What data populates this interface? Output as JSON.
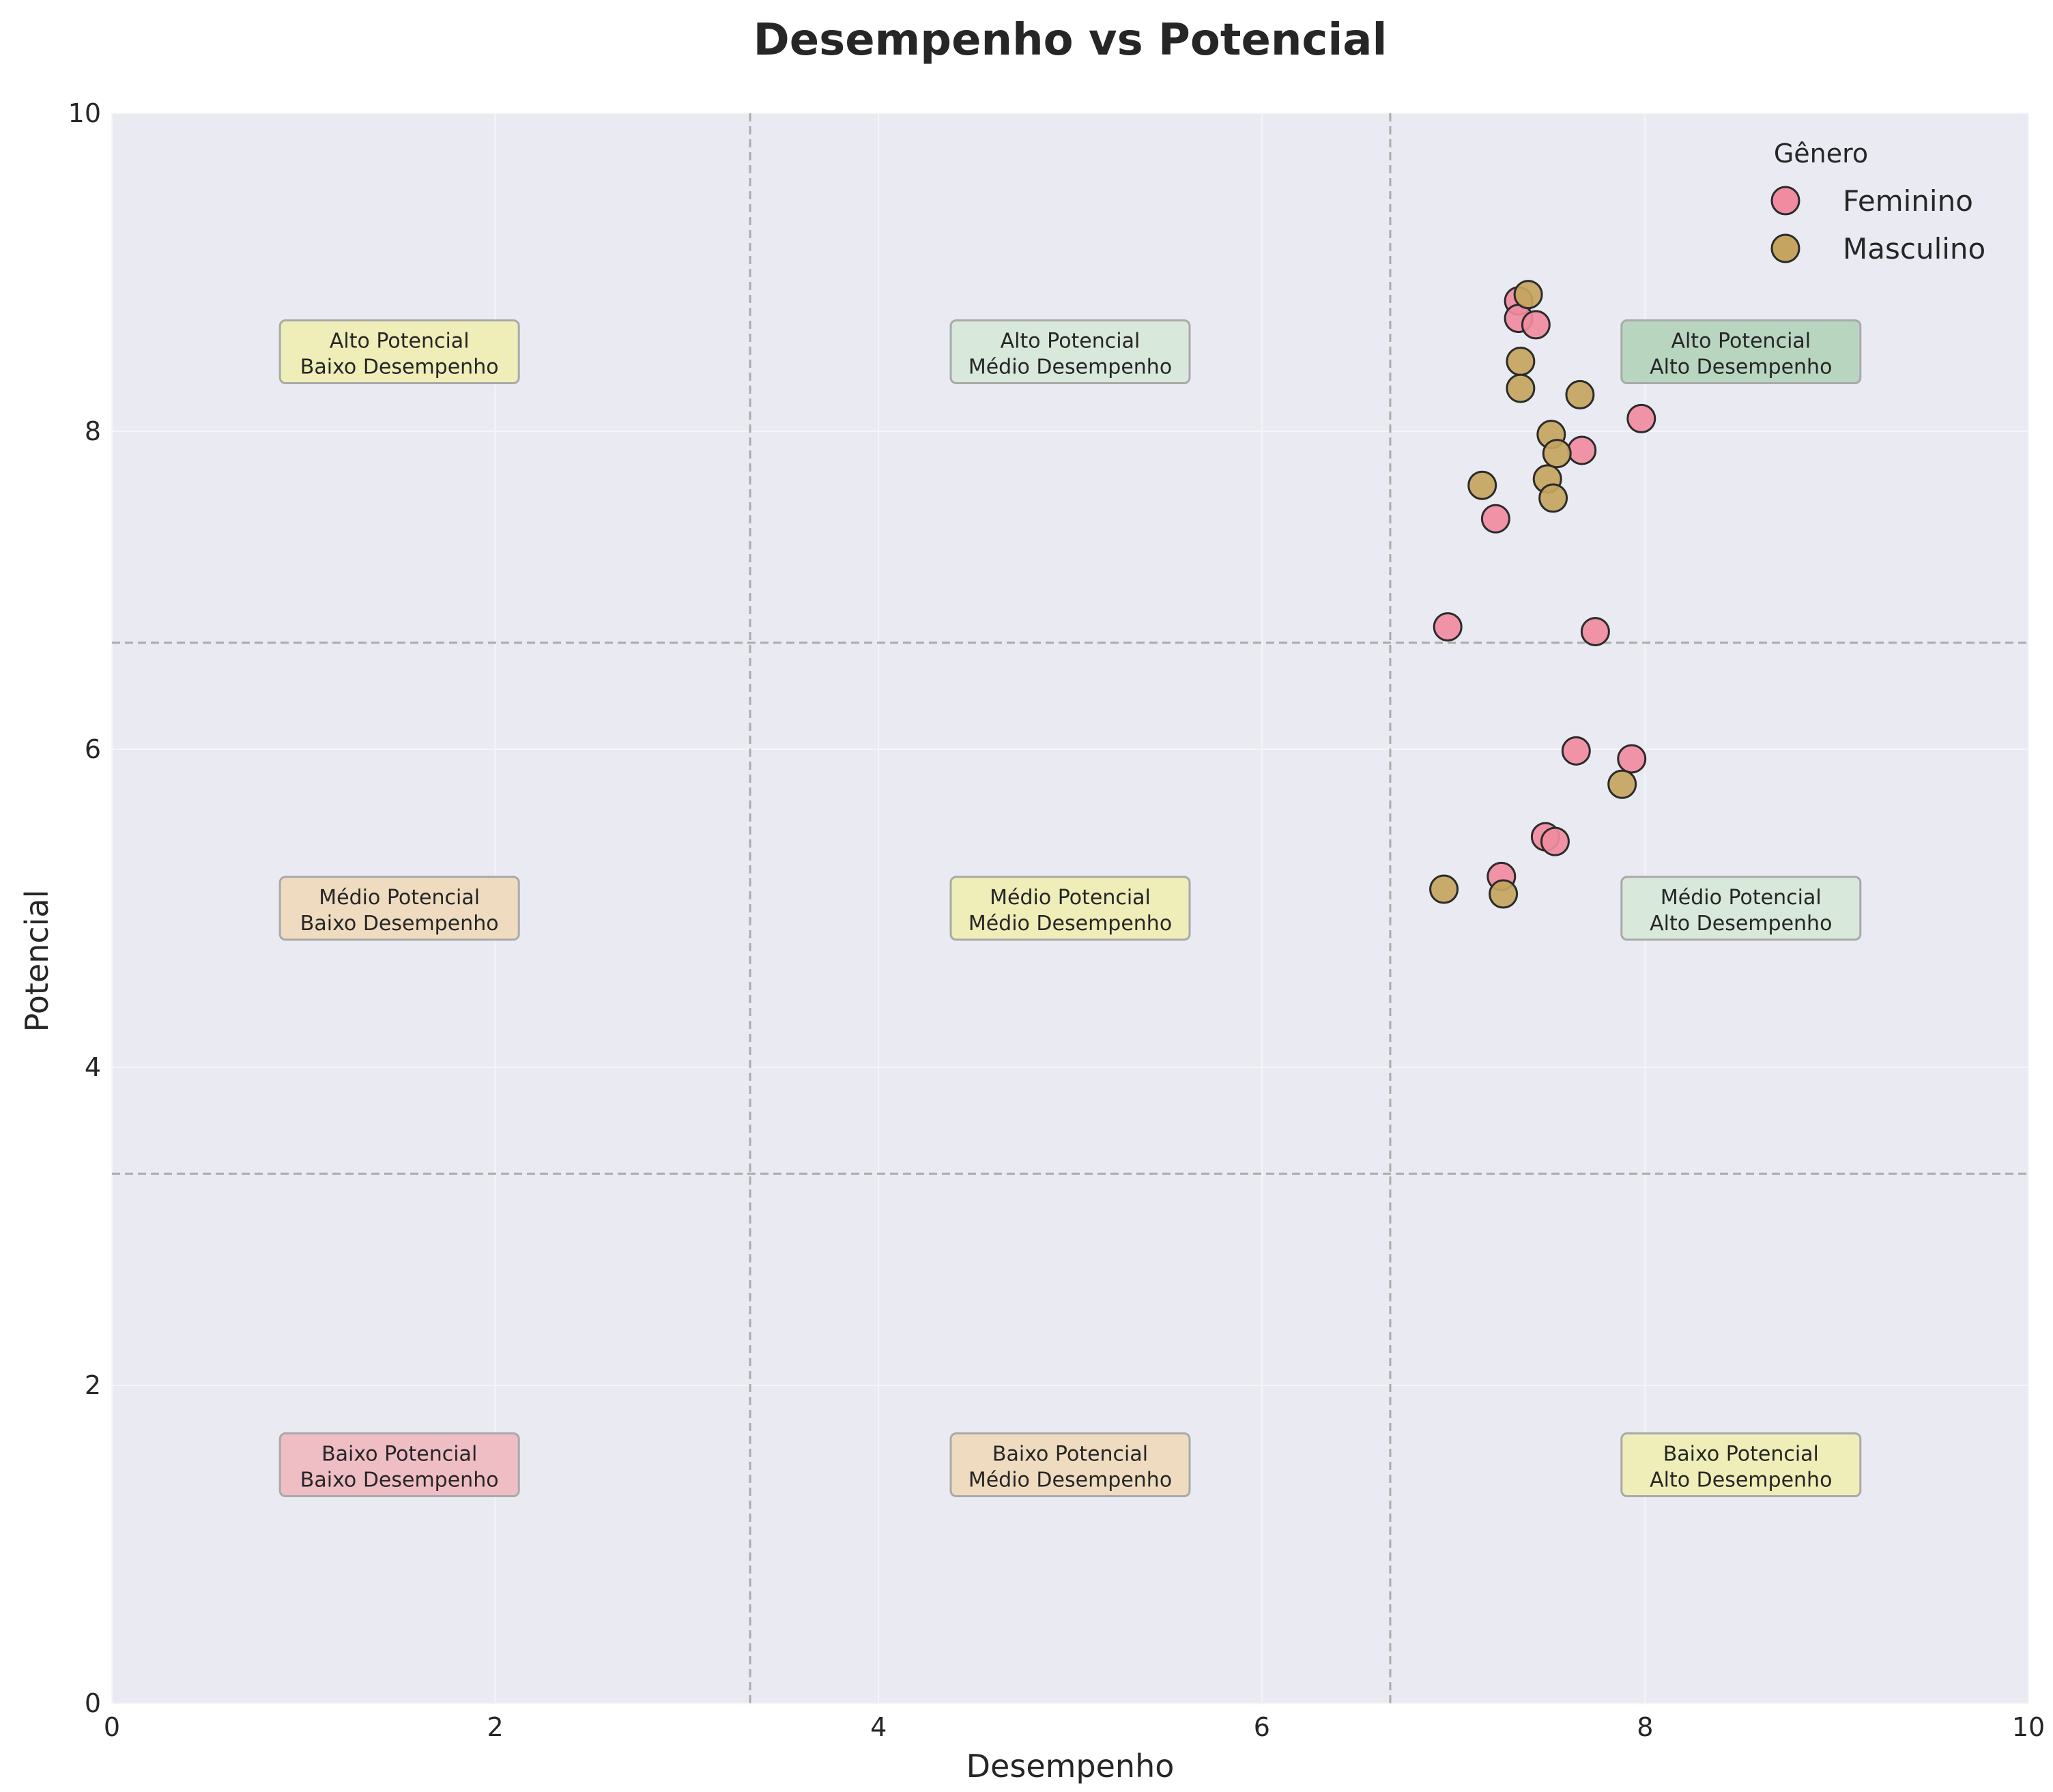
{
  "chart_data": {
    "type": "scatter",
    "title": "Desempenho vs Potencial",
    "xlabel": "Desempenho",
    "ylabel": "Potencial",
    "xlim": [
      0,
      10
    ],
    "ylim": [
      0,
      10
    ],
    "xticks": [
      0,
      2,
      4,
      6,
      8,
      10
    ],
    "yticks": [
      0,
      2,
      4,
      6,
      8,
      10
    ],
    "grid": true,
    "thresholds": {
      "x": [
        3.33,
        6.67
      ],
      "y": [
        3.33,
        6.67
      ]
    },
    "legend": {
      "title": "Gênero",
      "placement": "top-right"
    },
    "series": [
      {
        "name": "Feminino",
        "color": "#F08BA0",
        "points": [
          [
            7.34,
            8.82
          ],
          [
            7.34,
            8.71
          ],
          [
            7.43,
            8.67
          ],
          [
            7.98,
            8.08
          ],
          [
            7.67,
            7.88
          ],
          [
            7.22,
            7.45
          ],
          [
            6.97,
            6.77
          ],
          [
            7.74,
            6.74
          ],
          [
            7.64,
            5.99
          ],
          [
            7.93,
            5.94
          ],
          [
            7.48,
            5.45
          ],
          [
            7.53,
            5.42
          ],
          [
            7.25,
            5.2
          ]
        ]
      },
      {
        "name": "Masculino",
        "color": "#C4A45E",
        "points": [
          [
            7.39,
            8.86
          ],
          [
            7.35,
            8.44
          ],
          [
            7.35,
            8.27
          ],
          [
            7.66,
            8.23
          ],
          [
            7.51,
            7.98
          ],
          [
            7.54,
            7.86
          ],
          [
            7.15,
            7.66
          ],
          [
            7.49,
            7.7
          ],
          [
            7.52,
            7.58
          ],
          [
            7.88,
            5.78
          ],
          [
            6.95,
            5.12
          ],
          [
            7.26,
            5.09
          ]
        ]
      }
    ],
    "zones": [
      {
        "id": "alto-baixo",
        "line1": "Alto Potencial",
        "line2": "Baixo Desempenho",
        "x": 1.5,
        "y": 8.5,
        "color": "#EFEDB8"
      },
      {
        "id": "alto-medio",
        "line1": "Alto Potencial",
        "line2": "Médio Desempenho",
        "x": 5.0,
        "y": 8.5,
        "color": "#D8E8DA"
      },
      {
        "id": "alto-alto",
        "line1": "Alto Potencial",
        "line2": "Alto Desempenho",
        "x": 8.5,
        "y": 8.5,
        "color": "#B8D5C0"
      },
      {
        "id": "medio-baixo",
        "line1": "Médio Potencial",
        "line2": "Baixo Desempenho",
        "x": 1.5,
        "y": 5.0,
        "color": "#EFDCC0"
      },
      {
        "id": "medio-medio",
        "line1": "Médio Potencial",
        "line2": "Médio Desempenho",
        "x": 5.0,
        "y": 5.0,
        "color": "#EFEDB8"
      },
      {
        "id": "medio-alto",
        "line1": "Médio Potencial",
        "line2": "Alto Desempenho",
        "x": 8.5,
        "y": 5.0,
        "color": "#D8E8DA"
      },
      {
        "id": "baixo-baixo",
        "line1": "Baixo Potencial",
        "line2": "Baixo Desempenho",
        "x": 1.5,
        "y": 1.5,
        "color": "#EFBEC4"
      },
      {
        "id": "baixo-medio",
        "line1": "Baixo Potencial",
        "line2": "Médio Desempenho",
        "x": 5.0,
        "y": 1.5,
        "color": "#EFDCC0"
      },
      {
        "id": "baixo-alto",
        "line1": "Baixo Potencial",
        "line2": "Alto Desempenho",
        "x": 8.5,
        "y": 1.5,
        "color": "#EFEDB8"
      }
    ]
  },
  "colors": {
    "plot_background": "#EAEAF2",
    "grid": "#F5F5F8",
    "threshold_line": "#ABABAB",
    "marker_edge": "#2B2B2B",
    "zone_border": "#A9A9A9"
  }
}
